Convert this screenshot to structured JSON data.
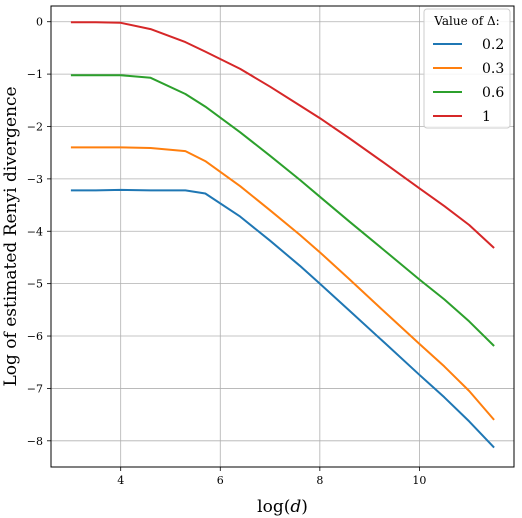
{
  "chart_data": {
    "type": "line",
    "xlabel": "log(d)",
    "ylabel": "Log of estimated Renyi divergence",
    "xlim": [
      2.6,
      11.9
    ],
    "ylim": [
      -8.5,
      0.3
    ],
    "xticks": [
      4,
      6,
      8,
      10
    ],
    "yticks": [
      0,
      -1,
      -2,
      -3,
      -4,
      -5,
      -6,
      -7,
      -8
    ],
    "grid": true,
    "legend": {
      "title": "Value of Δ:",
      "placement": "top-right"
    },
    "series": [
      {
        "name": "0.2",
        "color": "#1f77b4",
        "x": [
          3.0,
          3.5,
          4.0,
          4.6,
          5.3,
          5.7,
          6.4,
          7.0,
          7.6,
          8.0,
          8.6,
          9.3,
          10.0,
          10.5,
          11.0,
          11.5
        ],
        "y": [
          -3.22,
          -3.22,
          -3.21,
          -3.22,
          -3.22,
          -3.28,
          -3.72,
          -4.18,
          -4.66,
          -5.0,
          -5.52,
          -6.13,
          -6.74,
          -7.17,
          -7.63,
          -8.13
        ]
      },
      {
        "name": "0.3",
        "color": "#ff7f0e",
        "x": [
          3.0,
          3.5,
          4.0,
          4.6,
          5.3,
          5.7,
          6.4,
          7.0,
          7.6,
          8.0,
          8.6,
          9.3,
          10.0,
          10.5,
          11.0,
          11.5
        ],
        "y": [
          -2.4,
          -2.4,
          -2.4,
          -2.41,
          -2.47,
          -2.66,
          -3.14,
          -3.6,
          -4.07,
          -4.4,
          -4.92,
          -5.54,
          -6.15,
          -6.58,
          -7.05,
          -7.6
        ]
      },
      {
        "name": "0.6",
        "color": "#2ca02c",
        "x": [
          3.0,
          3.5,
          4.0,
          4.6,
          5.3,
          5.7,
          6.4,
          7.0,
          7.6,
          8.0,
          8.6,
          9.3,
          10.0,
          10.5,
          11.0,
          11.5
        ],
        "y": [
          -1.02,
          -1.02,
          -1.02,
          -1.07,
          -1.38,
          -1.62,
          -2.11,
          -2.56,
          -3.02,
          -3.34,
          -3.82,
          -4.37,
          -4.92,
          -5.3,
          -5.72,
          -6.19
        ]
      },
      {
        "name": "1",
        "color": "#d62728",
        "x": [
          3.0,
          3.5,
          4.0,
          4.6,
          5.3,
          5.7,
          6.4,
          7.0,
          7.6,
          8.0,
          8.6,
          9.3,
          10.0,
          10.5,
          11.0,
          11.5
        ],
        "y": [
          -0.01,
          -0.01,
          -0.02,
          -0.14,
          -0.39,
          -0.57,
          -0.9,
          -1.24,
          -1.6,
          -1.84,
          -2.23,
          -2.7,
          -3.18,
          -3.52,
          -3.88,
          -4.32
        ]
      }
    ]
  }
}
